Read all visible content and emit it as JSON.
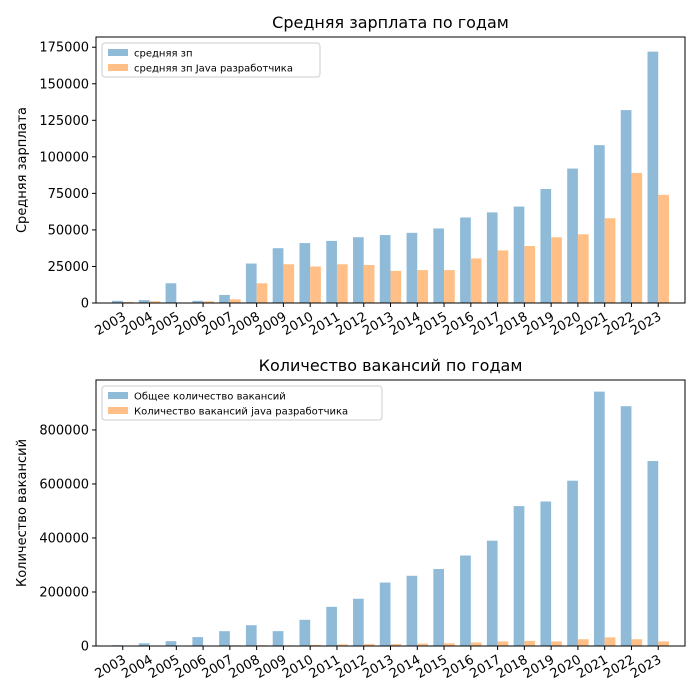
{
  "chart_data": [
    {
      "type": "bar",
      "title": "Средняя зарплата по годам",
      "xlabel": "",
      "ylabel": "Средняя зарплата",
      "categories": [
        "2003",
        "2004",
        "2005",
        "2006",
        "2007",
        "2008",
        "2009",
        "2010",
        "2011",
        "2012",
        "2013",
        "2014",
        "2015",
        "2016",
        "2017",
        "2018",
        "2019",
        "2020",
        "2021",
        "2022",
        "2023"
      ],
      "ylim": [
        0,
        182000
      ],
      "yticks": [
        0,
        25000,
        50000,
        75000,
        100000,
        125000,
        150000,
        175000
      ],
      "legend_position": "top-left",
      "series": [
        {
          "name": "средняя зп",
          "color": "#8fbbd9",
          "values": [
            1500,
            2000,
            13500,
            1500,
            5500,
            27000,
            37500,
            41000,
            42500,
            45000,
            46500,
            48000,
            51000,
            58500,
            62000,
            66000,
            78000,
            92000,
            108000,
            132000,
            172000
          ]
        },
        {
          "name": "средняя зп Java разработчика",
          "color": "#ffbf86",
          "values": [
            700,
            1200,
            0,
            1200,
            2500,
            13500,
            26500,
            25000,
            26500,
            26000,
            22000,
            22500,
            22500,
            30500,
            36000,
            39000,
            45000,
            47000,
            58000,
            89000,
            74000
          ]
        }
      ]
    },
    {
      "type": "bar",
      "title": "Количество вакансий по годам",
      "xlabel": "",
      "ylabel": "Количество вакансий",
      "categories": [
        "2003",
        "2004",
        "2005",
        "2006",
        "2007",
        "2008",
        "2009",
        "2010",
        "2011",
        "2012",
        "2013",
        "2014",
        "2015",
        "2016",
        "2017",
        "2018",
        "2019",
        "2020",
        "2021",
        "2022",
        "2023"
      ],
      "ylim": [
        0,
        985000
      ],
      "yticks": [
        0,
        200000,
        400000,
        600000,
        800000
      ],
      "legend_position": "top-left",
      "series": [
        {
          "name": "Общее количество вакансий",
          "color": "#8fbbd9",
          "values": [
            3000,
            10000,
            18000,
            33000,
            55000,
            77000,
            55000,
            97000,
            145000,
            175000,
            235000,
            260000,
            285000,
            335000,
            390000,
            518000,
            535000,
            612000,
            942000,
            888000,
            685000
          ]
        },
        {
          "name": "Количество вакансий java разработчика",
          "color": "#ffbf86",
          "values": [
            200,
            600,
            1500,
            2000,
            2500,
            3000,
            2500,
            4000,
            6000,
            7000,
            7000,
            9000,
            10000,
            13000,
            17000,
            19000,
            17000,
            25000,
            32000,
            25000,
            17000
          ]
        }
      ]
    }
  ]
}
